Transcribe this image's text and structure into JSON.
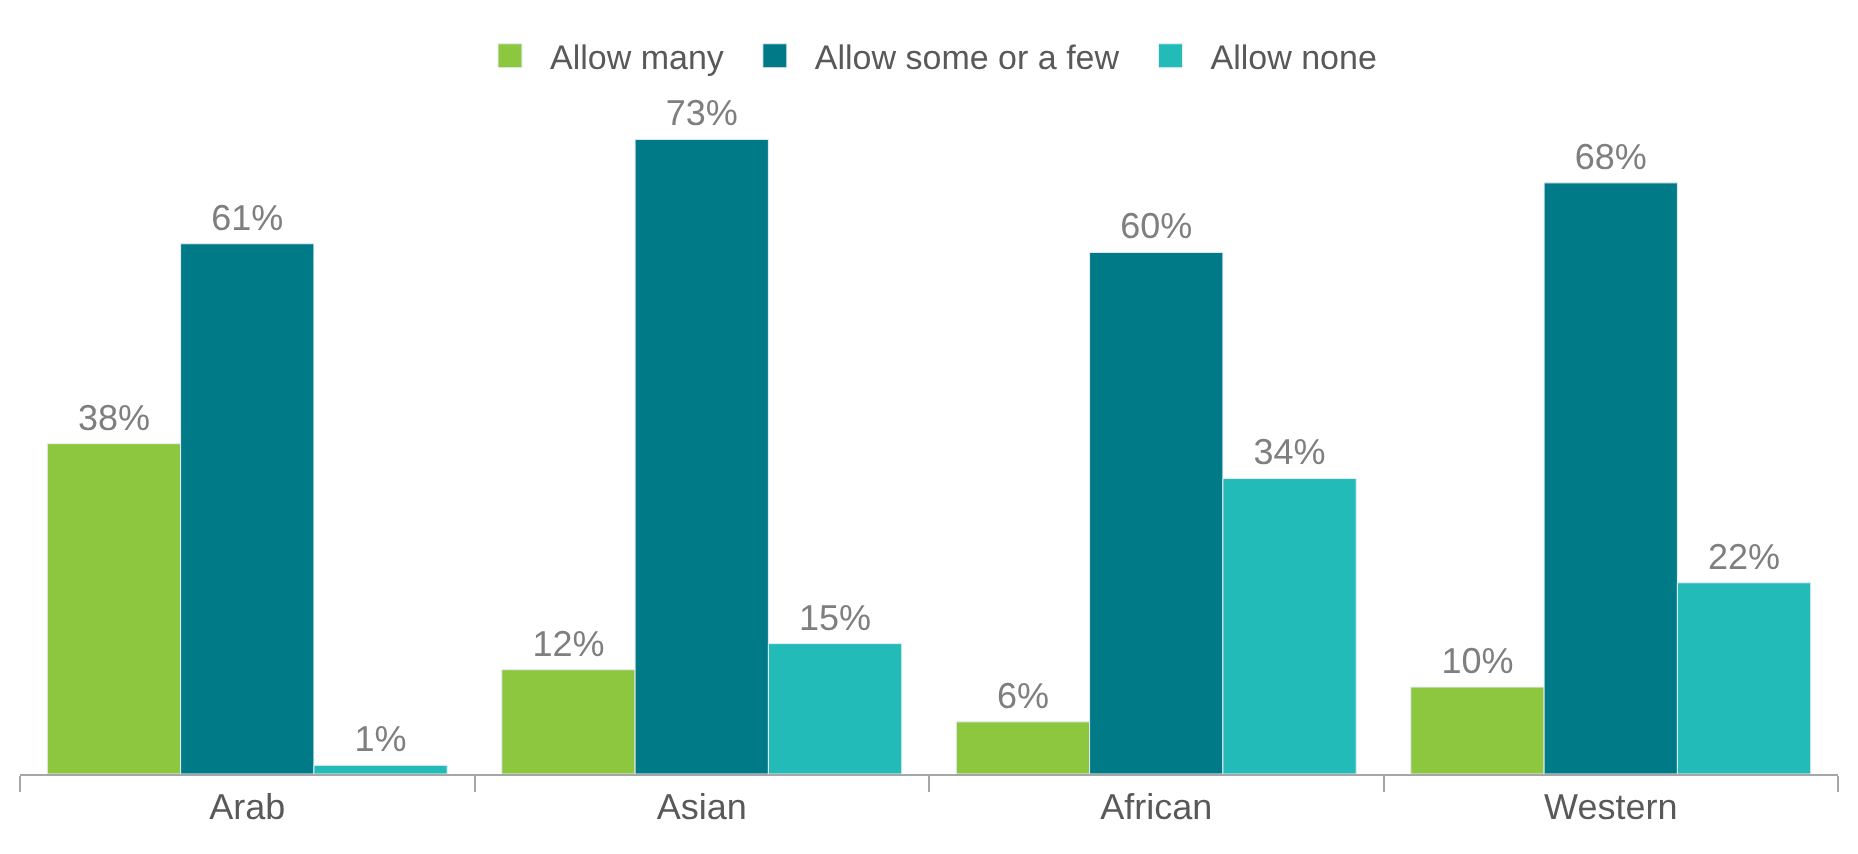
{
  "chart_data": {
    "type": "bar",
    "categories": [
      "Arab",
      "Asian",
      "African",
      "Western"
    ],
    "series": [
      {
        "name": "Allow many",
        "color": "#8dc63f",
        "values": [
          38,
          12,
          6,
          10
        ],
        "value_labels": [
          "38%",
          "12%",
          "6%",
          "10%"
        ]
      },
      {
        "name": "Allow some or a few",
        "color": "#007a87",
        "values": [
          61,
          73,
          60,
          68
        ],
        "value_labels": [
          "61%",
          "73%",
          "60%",
          "68%"
        ]
      },
      {
        "name": "Allow none",
        "color": "#22bbb8",
        "values": [
          1,
          15,
          34,
          22
        ],
        "value_labels": [
          "1%",
          "15%",
          "34%",
          "22%"
        ]
      }
    ],
    "legend": "top"
  }
}
